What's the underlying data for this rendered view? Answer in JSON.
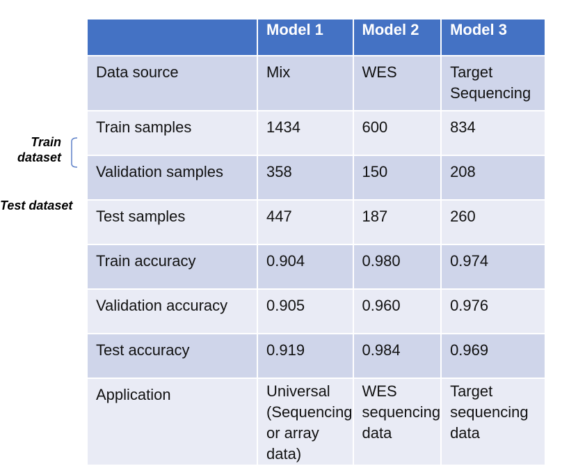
{
  "side_labels": {
    "train_dataset": "Train\ndataset",
    "test_dataset": "Test dataset"
  },
  "table": {
    "headers": [
      "",
      "Model 1",
      "Model 2",
      "Model 3"
    ],
    "rows": [
      {
        "label": "Data source",
        "cells": [
          "Mix",
          "WES",
          "Target Sequencing"
        ]
      },
      {
        "label": "Train samples",
        "cells": [
          "1434",
          "600",
          "834"
        ]
      },
      {
        "label": "Validation samples",
        "cells": [
          "358",
          "150",
          "208"
        ]
      },
      {
        "label": "Test samples",
        "cells": [
          "447",
          "187",
          "260"
        ]
      },
      {
        "label": "Train accuracy",
        "cells": [
          "0.904",
          "0.980",
          "0.974"
        ]
      },
      {
        "label": "Validation accuracy",
        "cells": [
          "0.905",
          "0.960",
          "0.976"
        ]
      },
      {
        "label": "Test accuracy",
        "cells": [
          "0.919",
          "0.984",
          "0.969"
        ]
      },
      {
        "label": "Application",
        "cells": [
          "Universal (Sequencing or array data)",
          "WES sequencing data",
          "Target sequencing data"
        ]
      }
    ]
  },
  "colors": {
    "header": "#4472c4",
    "row_dark": "#cfd5ea",
    "row_light": "#e9ebf5",
    "bracket": "#5b7fc7"
  }
}
